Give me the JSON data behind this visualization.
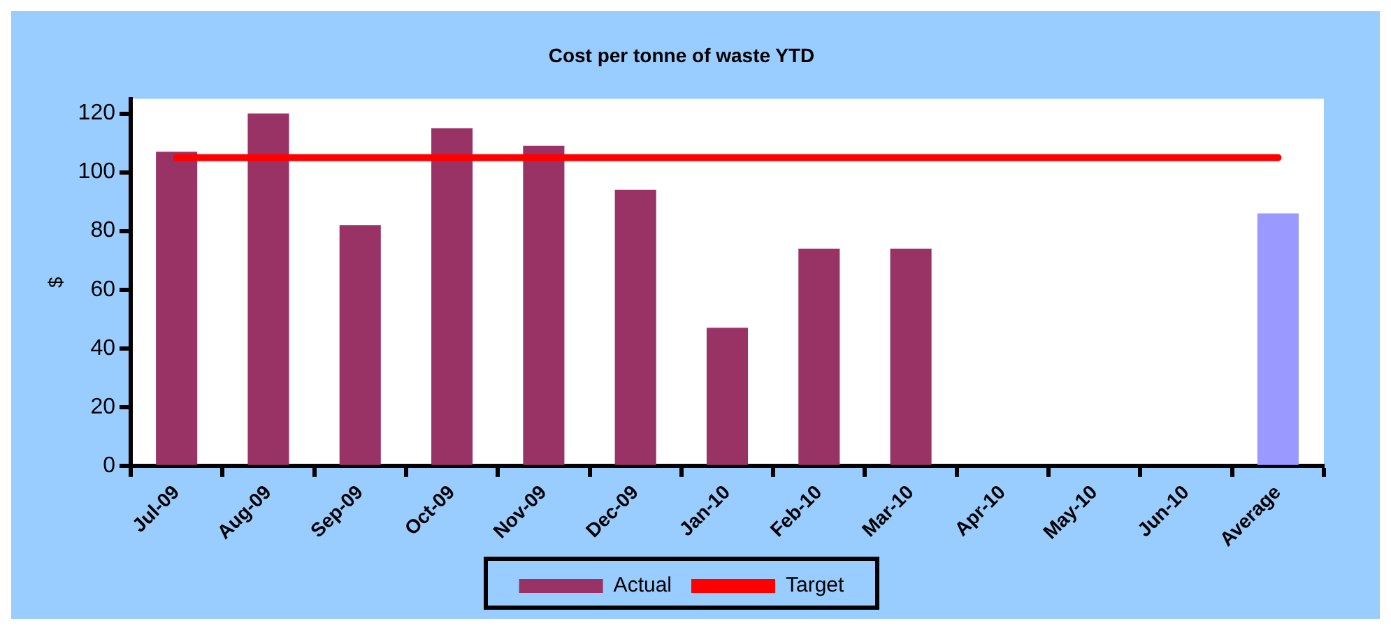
{
  "chart_data": {
    "type": "bar",
    "title": "Cost per tonne of waste YTD",
    "ylabel": "$",
    "categories": [
      "Jul-09",
      "Aug-09",
      "Sep-09",
      "Oct-09",
      "Nov-09",
      "Dec-09",
      "Jan-10",
      "Feb-10",
      "Mar-10",
      "Apr-10",
      "May-10",
      "Jun-10",
      "Average"
    ],
    "series": [
      {
        "name": "Actual",
        "color": "#993366",
        "colors": [
          "#993366",
          "#993366",
          "#993366",
          "#993366",
          "#993366",
          "#993366",
          "#993366",
          "#993366",
          "#993366",
          "#993366",
          "#993366",
          "#993366",
          "#9999ff"
        ],
        "values": [
          107,
          120,
          82,
          115,
          109,
          94,
          47,
          74,
          74,
          null,
          null,
          null,
          86
        ]
      },
      {
        "name": "Target",
        "type": "line",
        "color": "#ff0000",
        "values": [
          105,
          105,
          105,
          105,
          105,
          105,
          105,
          105,
          105,
          105,
          105,
          105,
          105
        ]
      }
    ],
    "ylim": [
      0,
      125
    ],
    "yticks": [
      0,
      20,
      40,
      60,
      80,
      100,
      120
    ],
    "grid": false,
    "legend": "bottom",
    "marker": "none"
  }
}
